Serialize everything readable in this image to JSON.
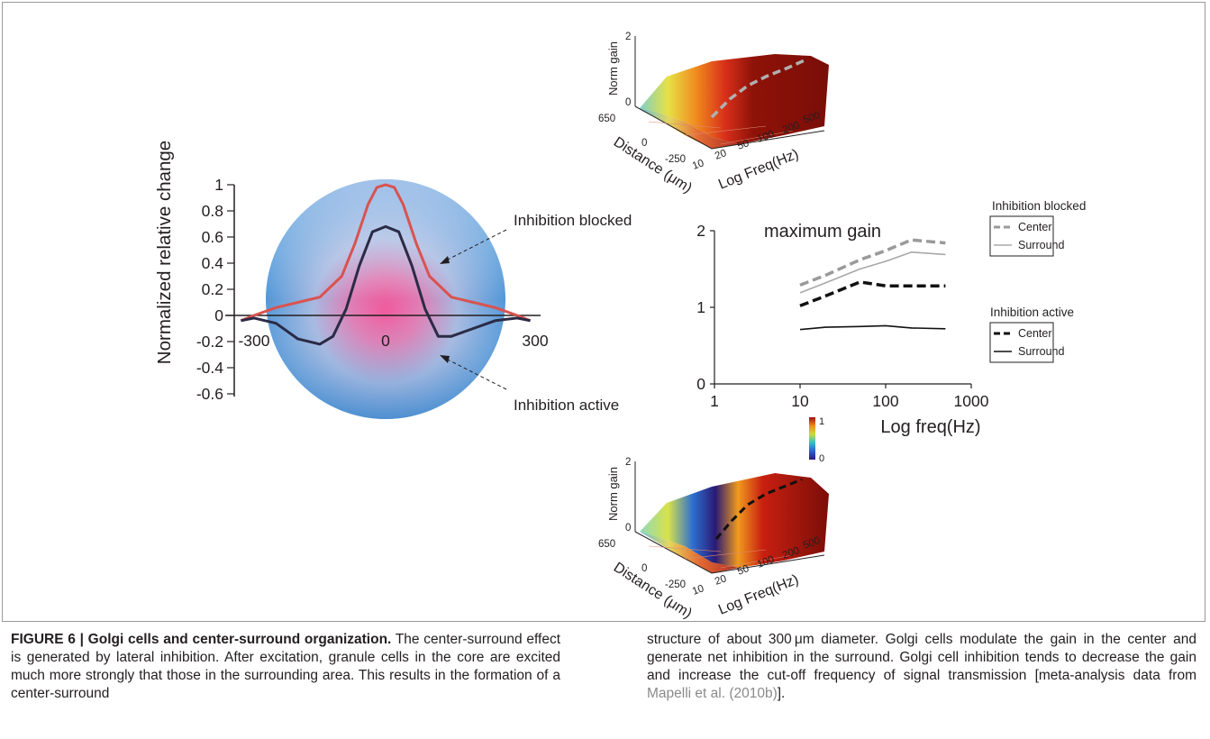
{
  "figure": {
    "profile_chart": {
      "ylabel": "Normalized relative change",
      "y_ticks": [
        "1",
        "0.8",
        "0.6",
        "0.4",
        "0.2",
        "0",
        "-0.2",
        "-0.4",
        "-0.6"
      ],
      "x_ticks": [
        "-300",
        "0",
        "300"
      ],
      "annotations": [
        "Inhibition blocked",
        "Inhibition active"
      ],
      "colors": {
        "blocked_curve": "#d9534f",
        "active_curve": "#2b2b45"
      }
    },
    "gain_chart": {
      "title": "maximum gain",
      "xlabel": "Log freq(Hz)",
      "x_ticks": [
        "1",
        "10",
        "100",
        "1000"
      ],
      "y_ticks": [
        "2",
        "1",
        "0"
      ],
      "legend": {
        "group1_title": "Inhibition blocked",
        "group1_items": [
          "Center",
          "Surround"
        ],
        "group2_title": "Inhibition active",
        "group2_items": [
          "Center",
          "Surround"
        ]
      }
    },
    "surface_top": {
      "zlabel": "Norm gain",
      "z_ticks": [
        "2",
        "0"
      ],
      "ylabel": "Distance (μm)",
      "y_ticks": [
        "650",
        "0",
        "-250"
      ],
      "xlabel": "Log Freq(Hz)",
      "x_ticks": [
        "10",
        "20",
        "50",
        "100",
        "200",
        "500"
      ]
    },
    "surface_bottom": {
      "zlabel": "Norm gain",
      "z_ticks": [
        "2",
        "0"
      ],
      "ylabel": "Distance (μm)",
      "y_ticks": [
        "650",
        "0",
        "-250"
      ],
      "xlabel": "Log Freq(Hz)",
      "x_ticks": [
        "10",
        "20",
        "50",
        "100",
        "200",
        "500"
      ]
    },
    "colorbar": {
      "max_label": "1",
      "min_label": "0"
    }
  },
  "caption": {
    "label": "FIGURE 6 | Golgi cells and center-surround organization.",
    "left_body": "The center-surround effect is generated by lateral inhibition. After excitation, granule cells in the core are excited much more strongly that those in the surrounding area. This results in the formation of a center-surround",
    "right_body": "structure of about 300 μm diameter. Golgi cells modulate the gain in the center and generate net inhibition in the surround. Golgi cell inhibition tends to decrease the gain and increase the cut-off frequency of signal transmission [meta-analysis data from ",
    "reference": "Mapelli et al. (2010b)",
    "right_end": "]."
  },
  "chart_data": [
    {
      "type": "line",
      "xlabel": "",
      "ylabel": "Normalized relative change",
      "xlim": [
        -300,
        300
      ],
      "ylim": [
        -0.6,
        1
      ],
      "series": [
        {
          "x": [
            -330,
            -300,
            -250,
            -200,
            -150,
            -100,
            -70,
            -40,
            -20,
            0,
            20,
            40,
            70,
            100,
            150,
            200,
            250,
            300,
            330
          ],
          "values": [
            -0.04,
            0.0,
            0.06,
            0.1,
            0.14,
            0.3,
            0.55,
            0.85,
            0.98,
            1.0,
            0.98,
            0.85,
            0.55,
            0.3,
            0.14,
            0.1,
            0.06,
            0.0,
            -0.04
          ]
        },
        {
          "x": [
            -330,
            -300,
            -250,
            -200,
            -150,
            -120,
            -90,
            -60,
            -30,
            0,
            30,
            60,
            90,
            120,
            150,
            200,
            250,
            300,
            330
          ],
          "values": [
            -0.04,
            -0.02,
            -0.06,
            -0.18,
            -0.22,
            -0.16,
            0.05,
            0.38,
            0.64,
            0.68,
            0.64,
            0.38,
            0.05,
            -0.16,
            -0.16,
            -0.1,
            -0.04,
            -0.02,
            -0.04
          ]
        }
      ]
    },
    {
      "type": "line",
      "title": "maximum gain",
      "xlabel": "Log freq(Hz)",
      "ylabel": "",
      "xscale": "log",
      "xlim": [
        1,
        1000
      ],
      "ylim": [
        0,
        2
      ],
      "series": [
        {
          "name": "Inhibition blocked Center",
          "x": [
            10,
            20,
            50,
            100,
            200,
            500
          ],
          "values": [
            1.29,
            1.42,
            1.62,
            1.74,
            1.88,
            1.84
          ]
        },
        {
          "name": "Inhibition blocked Surround",
          "x": [
            10,
            20,
            50,
            100,
            200,
            500
          ],
          "values": [
            1.19,
            1.32,
            1.5,
            1.6,
            1.72,
            1.69
          ]
        },
        {
          "name": "Inhibition active Center",
          "x": [
            10,
            20,
            50,
            100,
            200,
            500
          ],
          "values": [
            1.02,
            1.15,
            1.33,
            1.28,
            1.28,
            1.28
          ]
        },
        {
          "name": "Inhibition active Surround",
          "x": [
            10,
            20,
            50,
            100,
            200,
            500
          ],
          "values": [
            0.71,
            0.74,
            0.75,
            0.76,
            0.73,
            0.72
          ]
        }
      ]
    }
  ]
}
